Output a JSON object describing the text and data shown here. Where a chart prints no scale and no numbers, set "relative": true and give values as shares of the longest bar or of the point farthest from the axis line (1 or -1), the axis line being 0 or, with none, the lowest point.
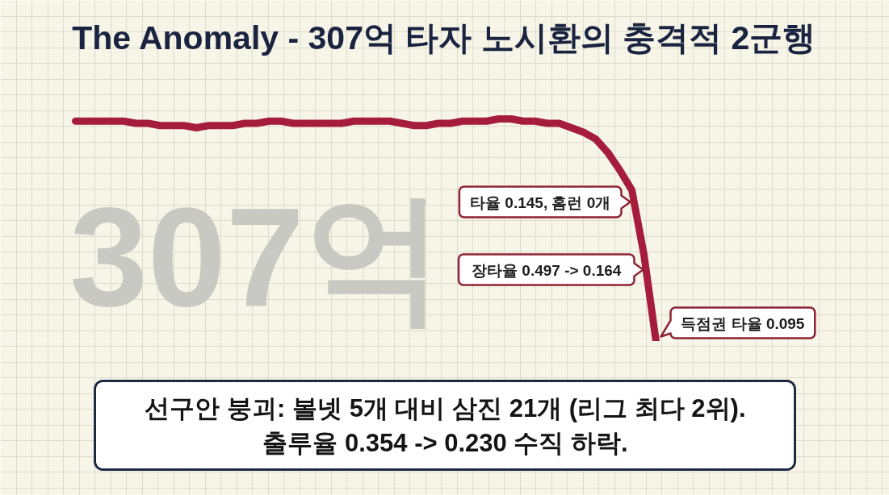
{
  "chart_data": {
    "type": "line",
    "title": "The Anomaly - 307억 타자 노시환의 충격적 2군행",
    "relative": true,
    "grid": true,
    "line_style": "solid",
    "color": "#a51c3c",
    "categories": [
      null,
      null,
      null,
      null,
      null,
      null,
      null,
      null,
      null,
      null,
      null,
      null,
      null,
      null,
      null,
      null,
      null,
      null,
      null,
      null,
      null,
      null,
      null,
      null,
      null,
      null,
      null,
      null,
      null,
      null,
      null,
      null,
      null,
      null,
      null,
      null,
      null,
      null,
      null,
      null,
      null,
      null,
      null,
      null,
      null,
      null,
      null,
      null,
      null
    ],
    "values": [
      0.99,
      0.99,
      0.99,
      0.99,
      0.99,
      0.98,
      0.98,
      0.97,
      0.97,
      0.97,
      0.96,
      0.97,
      0.97,
      0.97,
      0.98,
      0.98,
      0.99,
      0.99,
      0.98,
      0.98,
      0.98,
      0.98,
      0.98,
      0.99,
      0.99,
      0.99,
      0.99,
      0.98,
      0.97,
      0.97,
      0.98,
      0.98,
      0.99,
      0.99,
      0.99,
      1,
      1,
      0.99,
      0.99,
      0.98,
      0.98,
      0.96,
      0.94,
      0.91,
      0.85,
      0.77,
      0.68,
      0.39,
      0
    ],
    "annotations": [
      "307억",
      "타율 0.145, 홈런 0개",
      "장타율 0.497 -> 0.164",
      "득점권 타율 0.095",
      "선구안 붕괴: 볼넷 5개 대비 삼진 21개 (리그 최다 2위).",
      "출루율 0.354 -> 0.230 수직 하락."
    ]
  }
}
